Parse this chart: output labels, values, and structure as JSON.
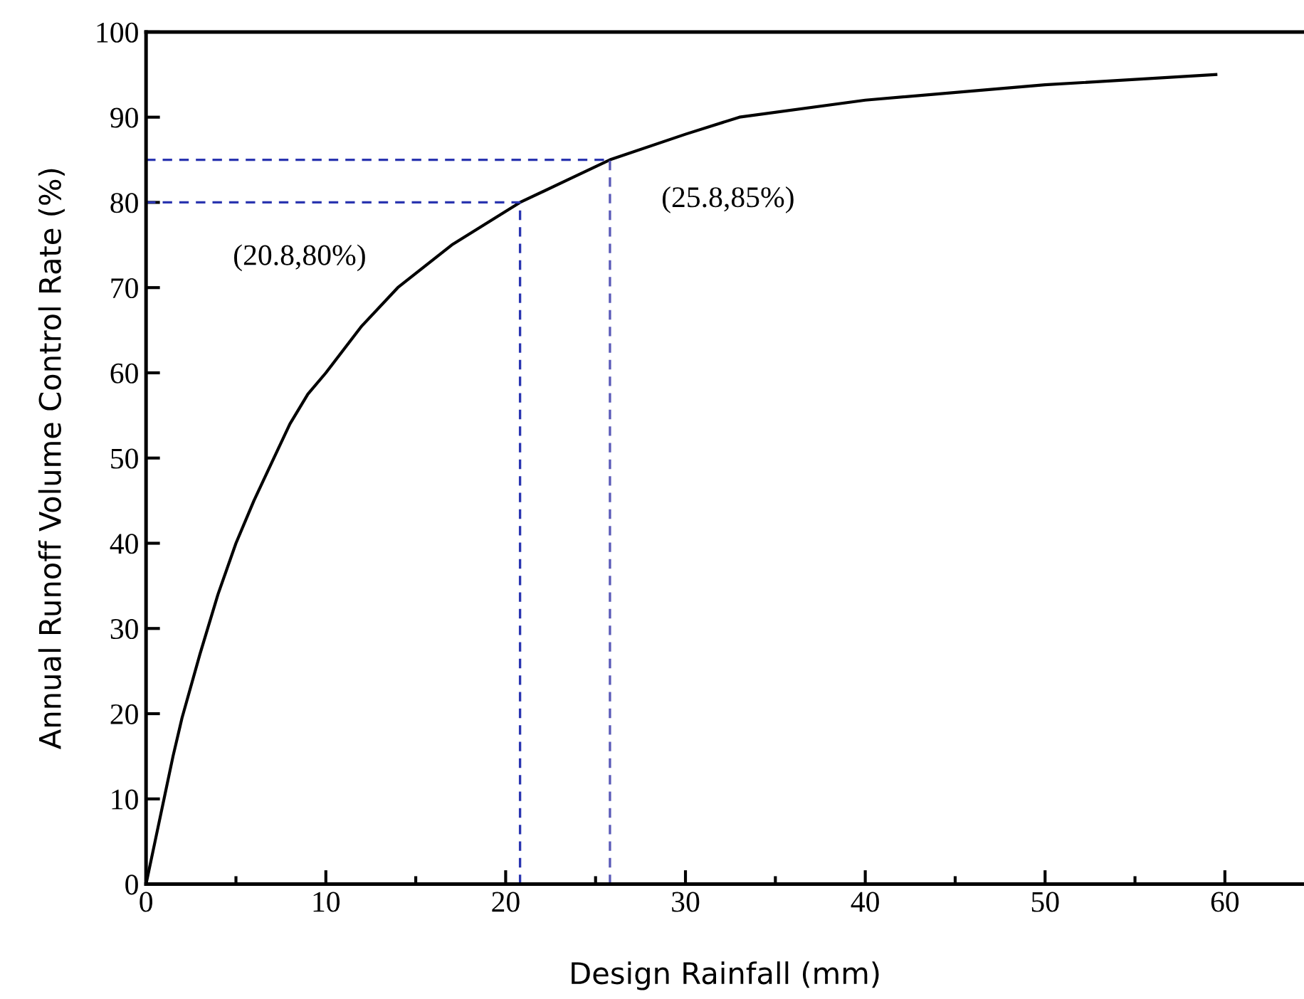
{
  "chart_data": {
    "type": "line",
    "xlabel": "Design Rainfall (mm)",
    "ylabel": "Annual Runoff Volume Control Rate (%)",
    "x": [
      0,
      0.5,
      1,
      1.5,
      2,
      3,
      4,
      5,
      6,
      7,
      8,
      9,
      10,
      12,
      14,
      17,
      20.8,
      25.8,
      30,
      33,
      40,
      50,
      59.5
    ],
    "series": [
      {
        "color": "#000000",
        "values": [
          0,
          5,
          10,
          15,
          19.5,
          27,
          34,
          40,
          45,
          49.5,
          54,
          57.5,
          60,
          65.5,
          70,
          75,
          80,
          85,
          88,
          90,
          92,
          93.8,
          95
        ]
      }
    ],
    "xlim": [
      0,
      64.4
    ],
    "ylim": [
      0,
      100
    ],
    "xticks": [
      0,
      10,
      20,
      30,
      40,
      50,
      60
    ],
    "yticks": [
      0,
      10,
      20,
      30,
      40,
      50,
      60,
      70,
      80,
      90,
      100
    ],
    "grid": false,
    "marker": "none",
    "line_style": "solid",
    "ref_lines": [
      {
        "axis": "x",
        "value": 20.8,
        "color": "#2a35b0",
        "line_style": "dashed"
      },
      {
        "axis": "y",
        "value": 80,
        "color": "#2a35b0",
        "line_style": "dashed"
      },
      {
        "axis": "x",
        "value": 25.8,
        "color": "#5a5ab8",
        "line_style": "dashed"
      },
      {
        "axis": "y",
        "value": 85,
        "color": "#2a35b0",
        "line_style": "dashed"
      }
    ],
    "annotations": [
      "(20.8,80%)",
      "(25.8,85%)"
    ]
  }
}
